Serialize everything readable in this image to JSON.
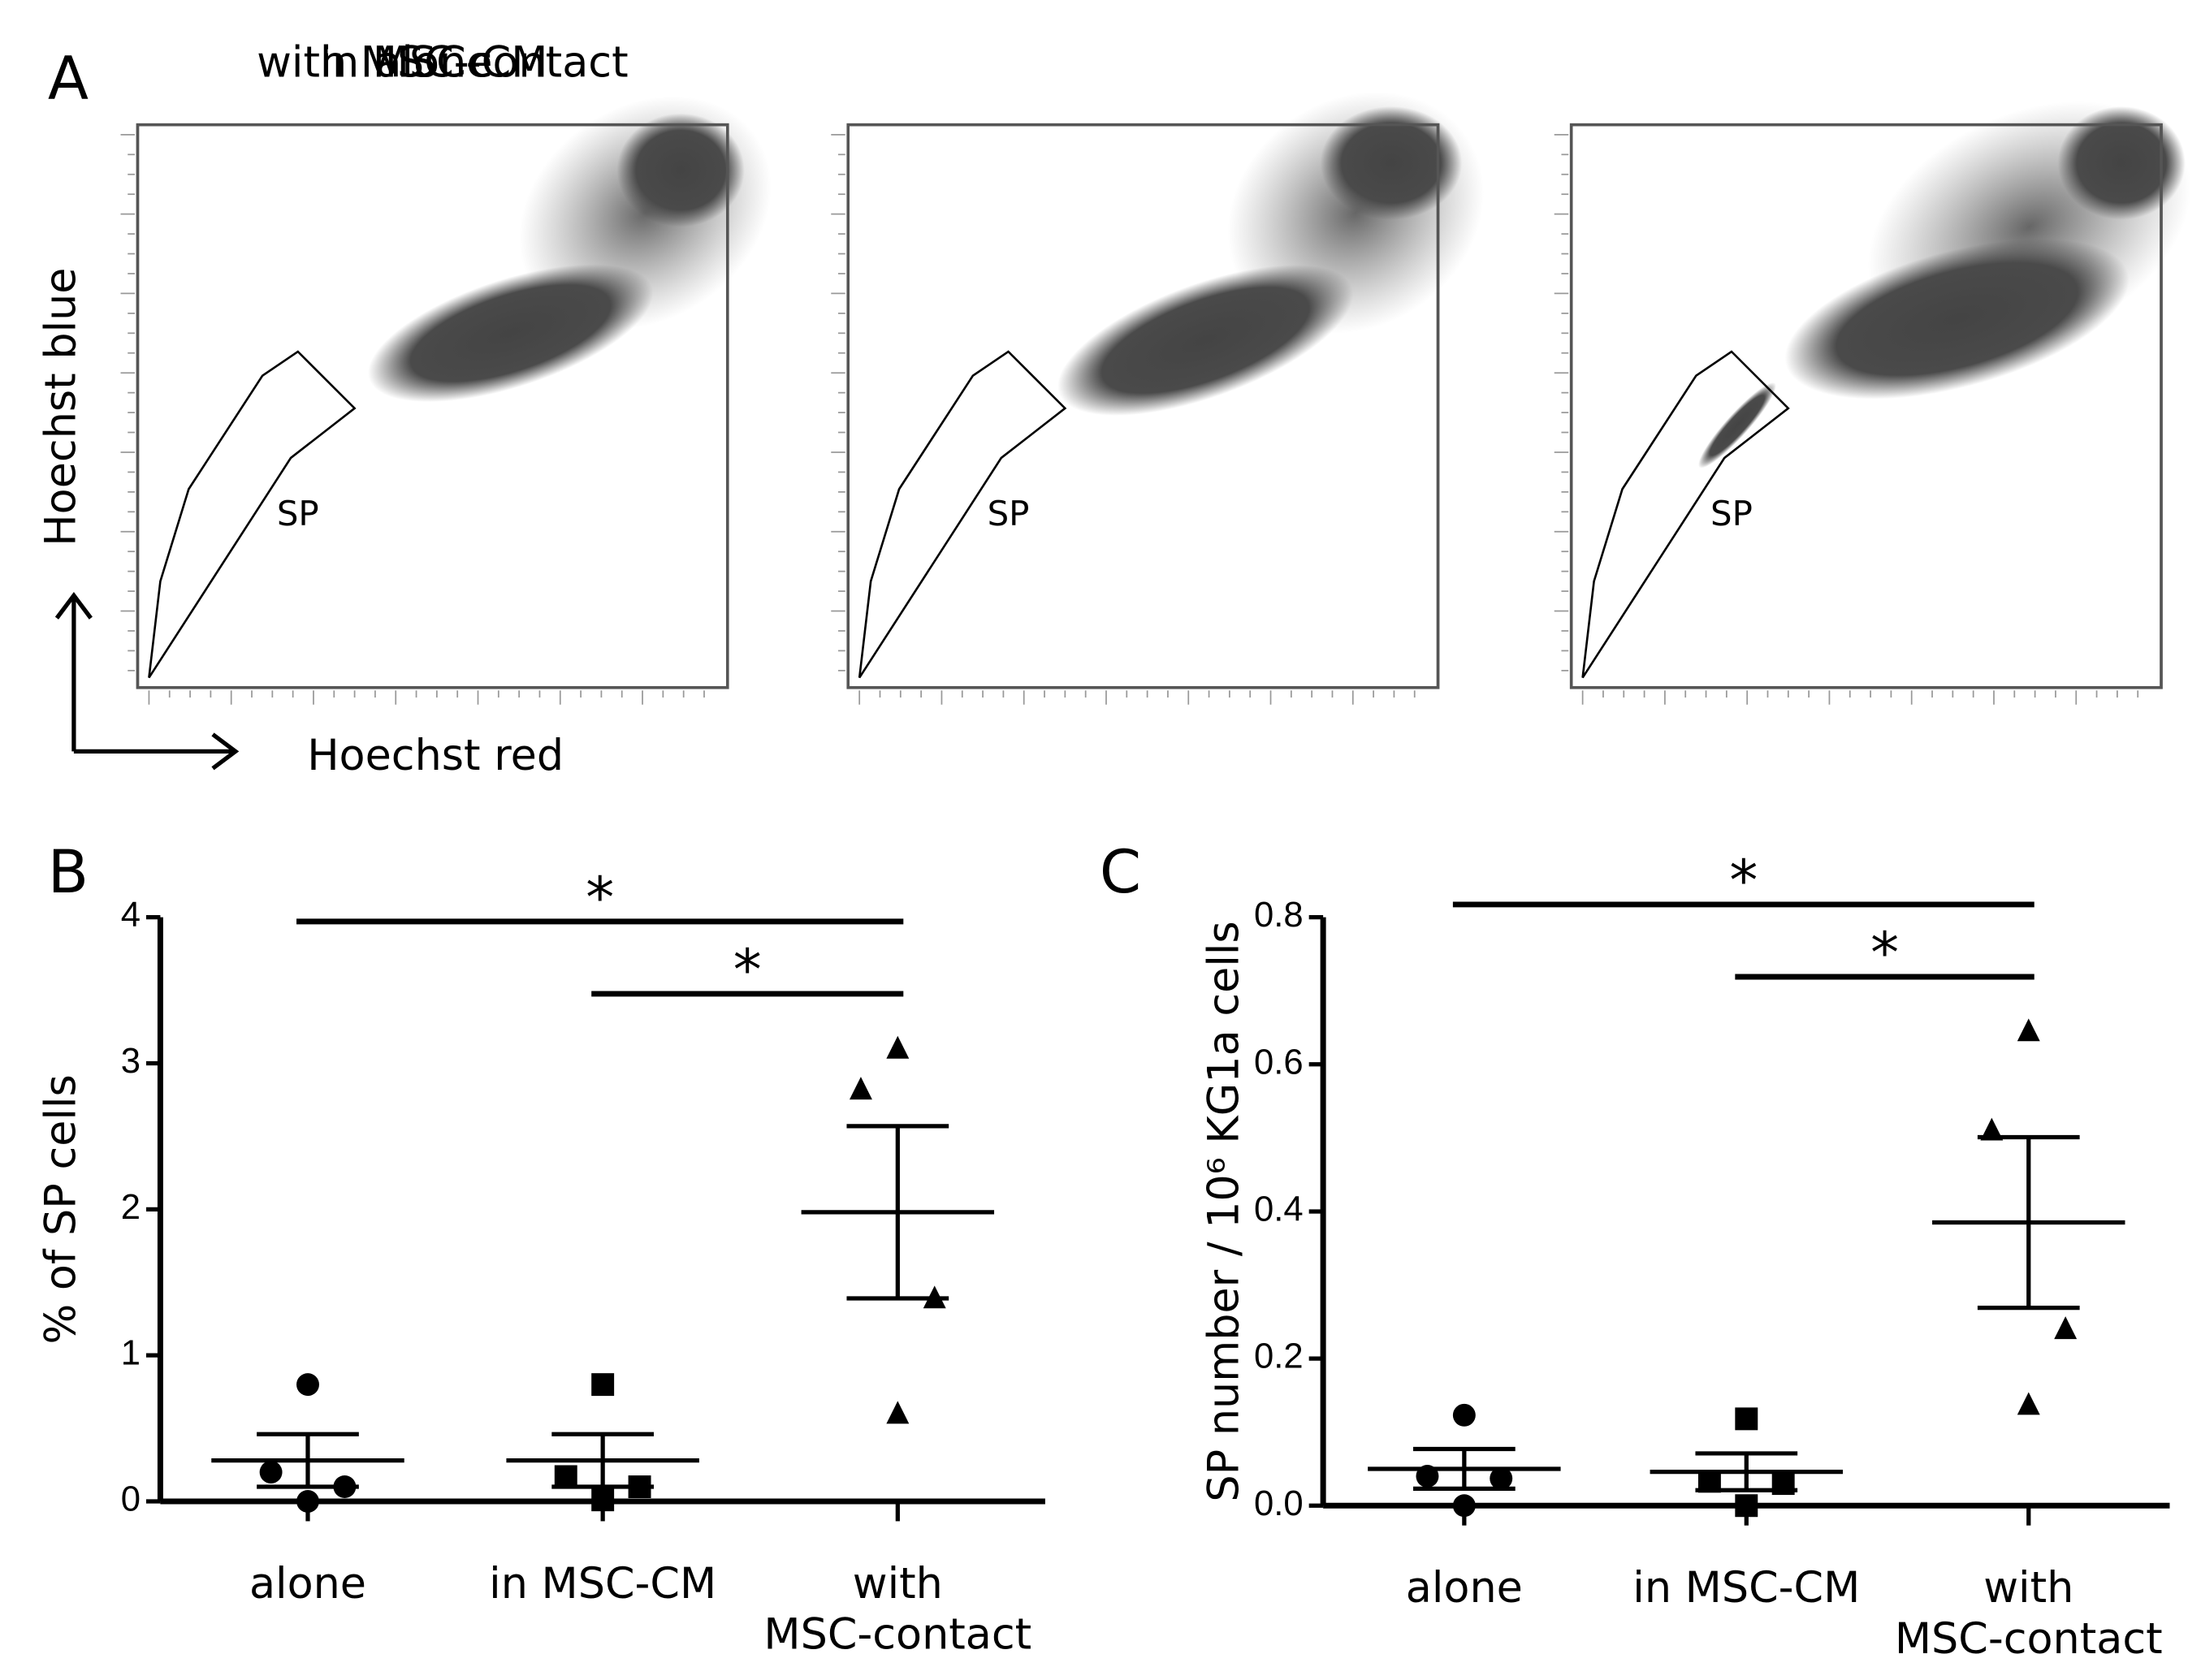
{
  "chart_data": [
    {
      "type": "flow",
      "panel": "A",
      "titles": [
        "alone",
        "in MSC-CM",
        "with MSC-contact"
      ],
      "xlabel": "Hoechst red",
      "ylabel": "Hoechst blue",
      "gate_label": "SP"
    },
    {
      "type": "dot",
      "panel": "B",
      "ylabel": "% of SP cells",
      "categories": [
        "alone",
        "in MSC-CM",
        "with MSC-contact"
      ],
      "markers": [
        "circle",
        "square",
        "triangle"
      ],
      "points": [
        [
          0.8,
          0.2,
          0.1,
          0.0
        ],
        [
          0.8,
          0.17,
          0.1,
          0.01
        ],
        [
          3.1,
          2.82,
          1.39,
          0.6
        ]
      ],
      "means": [
        0.28,
        0.28,
        1.98
      ],
      "sem": [
        0.18,
        0.18,
        0.59
      ],
      "ylim": [
        0,
        4
      ],
      "yticks": [
        0,
        1,
        2,
        3,
        4
      ],
      "significance": [
        {
          "label": "*",
          "groups": [
            "alone",
            "with MSC-contact"
          ]
        },
        {
          "label": "*",
          "groups": [
            "in MSC-CM",
            "with MSC-contact"
          ]
        }
      ]
    },
    {
      "type": "dot",
      "panel": "C",
      "ylabel": "SP number / 10⁶ KG1a cells",
      "categories": [
        "alone",
        "in MSC-CM",
        "with MSC-contact"
      ],
      "markers": [
        "circle",
        "square",
        "triangle"
      ],
      "points": [
        [
          0.123,
          0.04,
          0.037,
          0.0
        ],
        [
          0.118,
          0.033,
          0.03,
          0.0
        ],
        [
          0.645,
          0.51,
          0.24,
          0.137
        ]
      ],
      "means": [
        0.05,
        0.046,
        0.385
      ],
      "sem": [
        0.027,
        0.025,
        0.116
      ],
      "ylim": [
        0,
        0.8
      ],
      "yticks": [
        {
          "value": 0,
          "label": "0.0"
        },
        0.2,
        0.4,
        0.6,
        0.8
      ],
      "significance": [
        {
          "label": "*",
          "groups": [
            "alone",
            "with MSC-contact"
          ]
        },
        {
          "label": "*",
          "groups": [
            "in MSC-CM",
            "with MSC-contact"
          ]
        }
      ]
    }
  ]
}
